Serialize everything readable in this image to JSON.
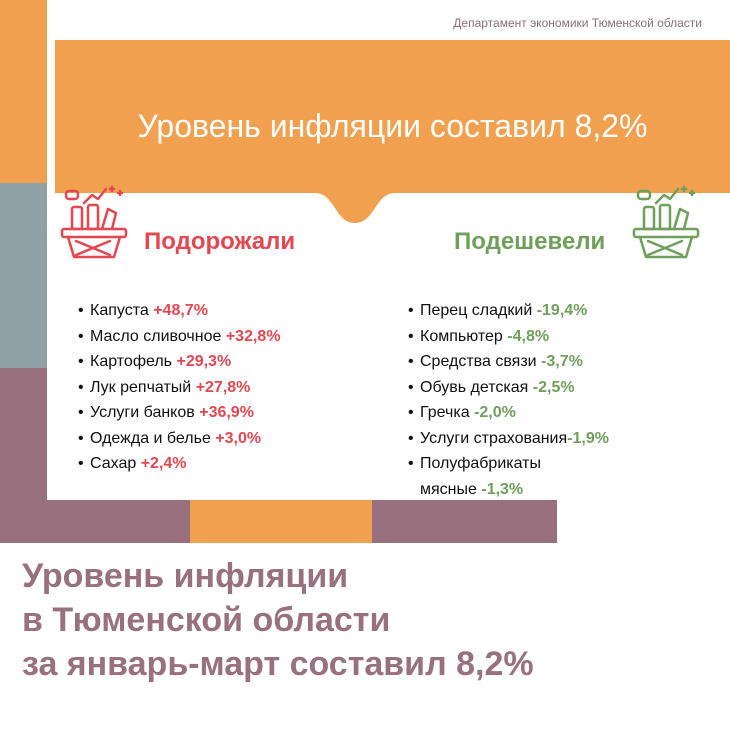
{
  "source": "Департамент экономики Тюменской области",
  "banner": {
    "title": "Уровень инфляции составил 8,2%"
  },
  "increased": {
    "title": "Подорожали",
    "icon": "shopping-basket-icon",
    "color": "#e4474f",
    "items": [
      {
        "name": "Капуста",
        "value": "+48,7%"
      },
      {
        "name": "Масло сливочное",
        "value": "+32,8%"
      },
      {
        "name": "Картофель",
        "value": "+29,3%"
      },
      {
        "name": "Лук репчатый",
        "value": "+27,8%"
      },
      {
        "name": "Услуги банков",
        "value": "+36,9%"
      },
      {
        "name": "Одежда и белье",
        "value": "+3,0%"
      },
      {
        "name": "Сахар",
        "value": "+2,4%"
      }
    ]
  },
  "decreased": {
    "title": "Подешевели",
    "icon": "shopping-basket-icon",
    "color": "#6fa05b",
    "items": [
      {
        "name": "Перец сладкий",
        "value": "-19,4%"
      },
      {
        "name": "Компьютер",
        "value": "-4,8%"
      },
      {
        "name": "Средства связи",
        "value": "-3,7%"
      },
      {
        "name": "Обувь детская",
        "value": "-2,5%"
      },
      {
        "name": "Гречка",
        "value": "-2,0%"
      },
      {
        "name": "Услуги страхования",
        "value": "-1,9%"
      },
      {
        "name": "Полуфабрикаты",
        "name_line2": "мясные",
        "value": "-1,3%"
      }
    ]
  },
  "headline": {
    "line1": "Уровень инфляции",
    "line2": "в Тюменской области",
    "line3": "за январь-март составил 8,2%"
  },
  "colors": {
    "orange": "#f0a04f",
    "gray": "#8fa1a7",
    "purple": "#98707e"
  }
}
